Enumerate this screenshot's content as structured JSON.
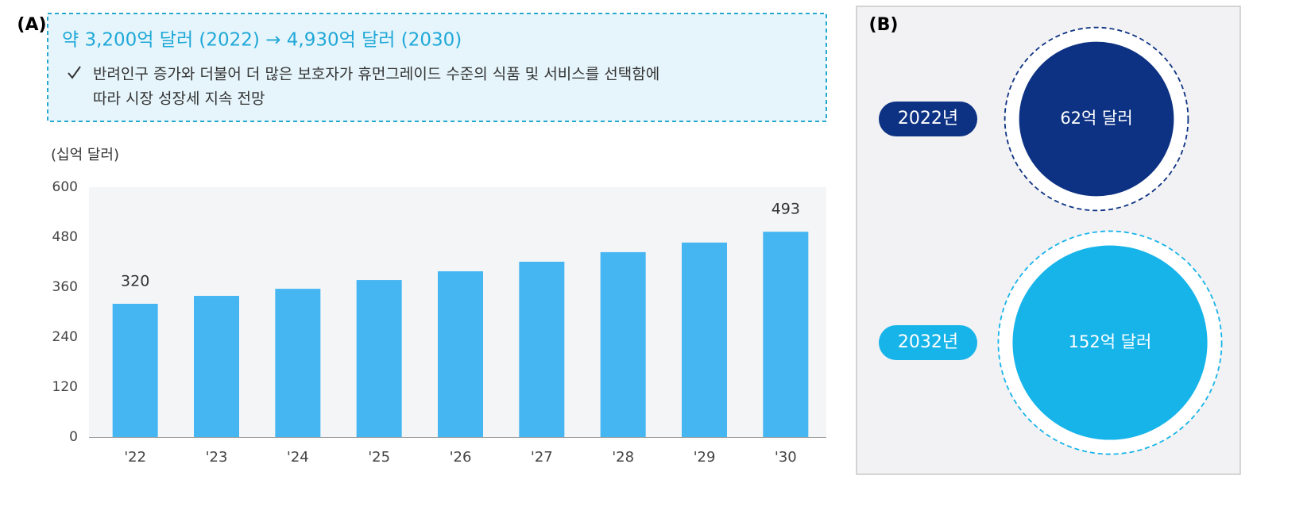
{
  "chart_data": [
    {
      "type": "bar",
      "panel_label": "(A)",
      "title": "약 3,200억 달러 (2022) → 4,930억 달러 (2030)",
      "subtitle_lines": [
        "반려인구 증가와 더불어 더 많은 보호자가 휴먼그레이드 수준의 식품 및 서비스를 선택함에",
        "따라 시장 성장세 지속 전망"
      ],
      "y_label": "(십억 달러)",
      "categories": [
        "'22",
        "'23",
        "'24",
        "'25",
        "'26",
        "'27",
        "'28",
        "'29",
        "'30"
      ],
      "values": [
        320,
        339,
        356,
        377,
        398,
        421,
        444,
        467,
        493
      ],
      "value_labels": [
        "320",
        null,
        null,
        null,
        null,
        null,
        null,
        null,
        "493"
      ],
      "color": "#45b6f2",
      "ylim": [
        0,
        600
      ],
      "yticks": [
        0,
        120,
        240,
        360,
        480,
        600
      ],
      "grid": false
    },
    {
      "type": "bubble",
      "panel_label": "(B)",
      "categories": [
        "2022년",
        "2032년"
      ],
      "values": [
        62,
        152
      ],
      "value_labels": [
        "62억 달러",
        "152억 달러"
      ],
      "colors": [
        "#0d3283",
        "#17b4ea"
      ]
    }
  ]
}
